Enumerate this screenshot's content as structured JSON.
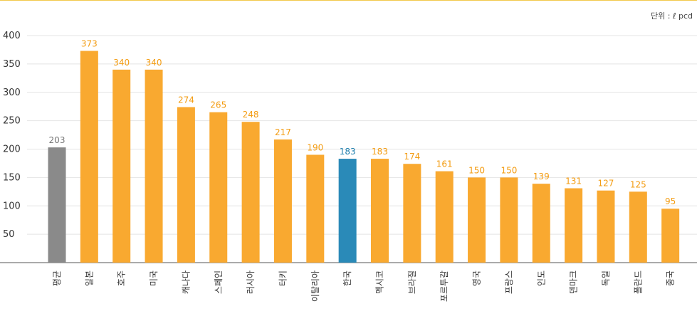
{
  "unit_label": "단위 : ℓ pcd",
  "chart_data": {
    "type": "bar",
    "title": "",
    "xlabel": "",
    "ylabel": "",
    "ylim": [
      0,
      400
    ],
    "yticks": [
      50,
      100,
      150,
      200,
      250,
      300,
      350,
      400
    ],
    "grid": true,
    "categories": [
      "평균",
      "일본",
      "호주",
      "미국",
      "캐나다",
      "스페인",
      "러시아",
      "터키",
      "이탈리아",
      "한국",
      "멕시코",
      "브라질",
      "포르투갈",
      "영국",
      "프랑스",
      "인도",
      "덴마크",
      "독일",
      "폴란드",
      "중국"
    ],
    "values": [
      203,
      373,
      340,
      340,
      274,
      265,
      248,
      217,
      190,
      183,
      183,
      174,
      161,
      150,
      150,
      139,
      131,
      127,
      125,
      95
    ],
    "colors": {
      "default": "#f9a930",
      "average": "#8a8a8a",
      "highlight": "#2a8ab8",
      "label_default": "#f39c12",
      "label_average": "#777777",
      "label_highlight": "#1f7fae"
    },
    "average_index": 0,
    "highlight_index": 9
  }
}
